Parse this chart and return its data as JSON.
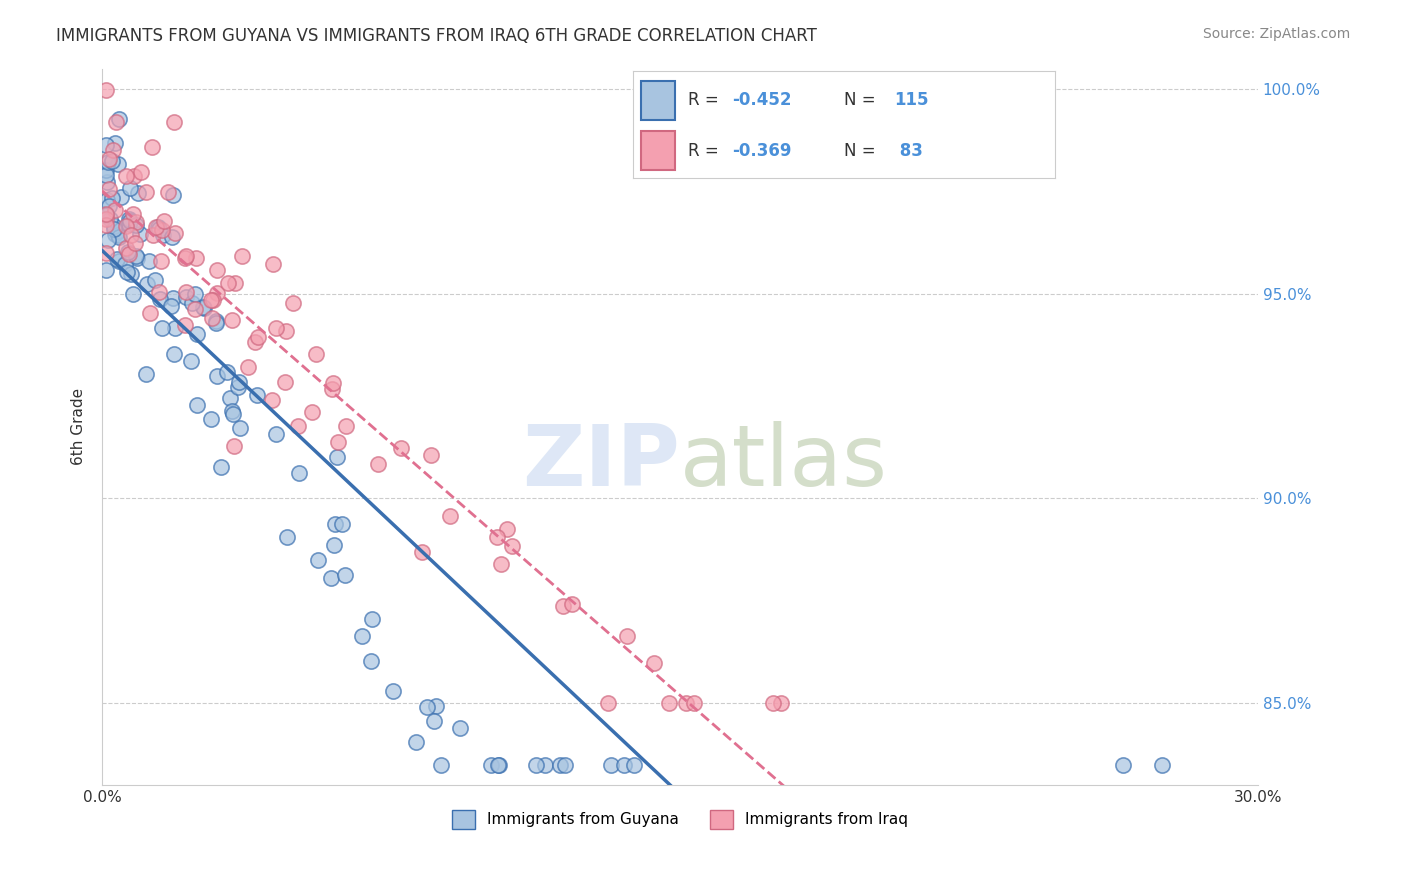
{
  "title": "IMMIGRANTS FROM GUYANA VS IMMIGRANTS FROM IRAQ 6TH GRADE CORRELATION CHART",
  "source": "Source: ZipAtlas.com",
  "ylabel": "6th Grade",
  "x_min": 0.0,
  "x_max": 0.3,
  "y_min": 0.83,
  "y_max": 1.005,
  "x_ticks": [
    0.0,
    0.05,
    0.1,
    0.15,
    0.2,
    0.25,
    0.3
  ],
  "x_tick_labels": [
    "0.0%",
    "",
    "",
    "",
    "",
    "",
    "30.0%"
  ],
  "y_ticks": [
    0.85,
    0.9,
    0.95,
    1.0
  ],
  "y_tick_labels": [
    "85.0%",
    "90.0%",
    "95.0%",
    "100.0%"
  ],
  "guyana_color": "#a8c4e0",
  "iraq_color": "#f4a0b0",
  "guyana_line_color": "#3a6faf",
  "iraq_line_color": "#e07090",
  "legend_label_guyana": "Immigrants from Guyana",
  "legend_label_iraq": "Immigrants from Iraq",
  "watermark_zip_color": "#c8d8f0",
  "watermark_atlas_color": "#b8c8a8"
}
